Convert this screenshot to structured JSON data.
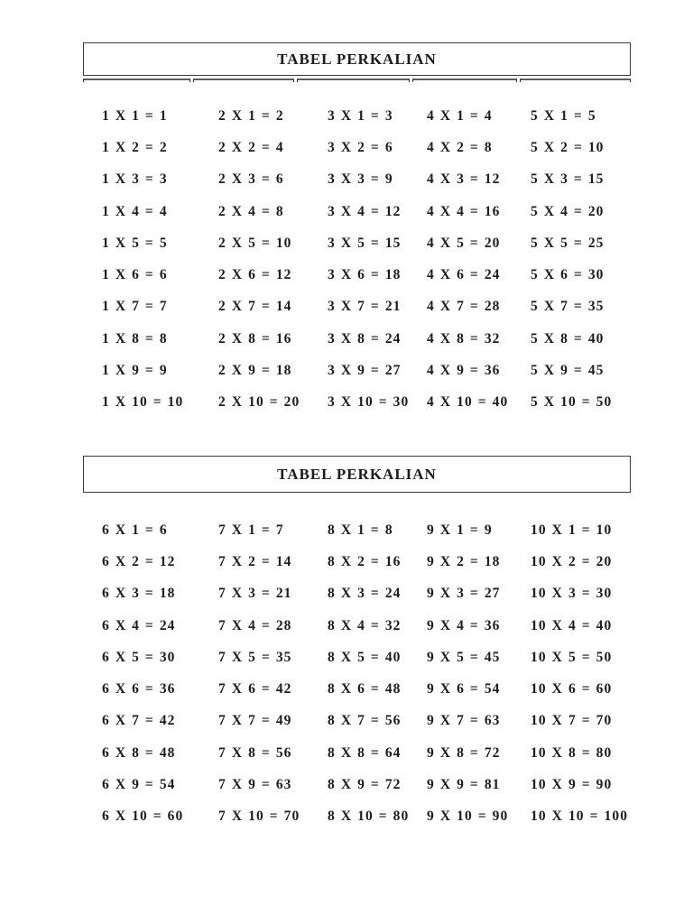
{
  "colors": {
    "page_bg": "#ffffff",
    "text": "#1c1c1c",
    "border": "#3a3a3a"
  },
  "sections": [
    {
      "title": "TABEL PERKALIAN",
      "rows": [
        [
          "1 X 1 = 1",
          "2 X 1 = 2",
          "3 X 1 = 3",
          "4 X 1 = 4",
          "5 X 1 = 5"
        ],
        [
          "1 X 2 = 2",
          "2 X 2 = 4",
          "3 X 2 = 6",
          "4 X 2 = 8",
          "5 X 2 = 10"
        ],
        [
          "1 X 3 = 3",
          "2 X 3 = 6",
          "3 X 3 = 9",
          "4 X 3 = 12",
          "5 X 3 = 15"
        ],
        [
          "1 X 4 = 4",
          "2 X 4 = 8",
          "3 X 4 = 12",
          "4 X 4 = 16",
          "5 X 4 = 20"
        ],
        [
          "1 X 5 = 5",
          "2 X 5 = 10",
          "3 X 5 = 15",
          "4 X 5 = 20",
          "5 X 5 = 25"
        ],
        [
          "1 X 6 = 6",
          "2 X 6 = 12",
          "3 X 6 = 18",
          "4 X 6 = 24",
          "5 X 6 = 30"
        ],
        [
          "1 X 7 = 7",
          "2 X 7 = 14",
          "3 X 7 = 21",
          "4 X 7 = 28",
          "5 X 7 = 35"
        ],
        [
          "1 X 8 = 8",
          "2 X 8 = 16",
          "3 X 8 = 24",
          "4 X 8 = 32",
          "5 X 8 = 40"
        ],
        [
          "1 X 9 = 9",
          "2 X 9 = 18",
          "3 X 9 = 27",
          "4 X 9 = 36",
          "5 X 9 = 45"
        ],
        [
          "1 X 10 = 10",
          "2 X 10 = 20",
          "3 X 10 = 30",
          "4 X 10 = 40",
          "5 X 10 = 50"
        ]
      ]
    },
    {
      "title": "TABEL PERKALIAN",
      "rows": [
        [
          "6 X 1 = 6",
          "7 X 1 = 7",
          "8 X 1 = 8",
          "9 X 1 = 9",
          "10 X 1 = 10"
        ],
        [
          "6 X 2 = 12",
          "7 X 2 = 14",
          "8 X 2 = 16",
          "9 X 2 = 18",
          "10 X 2 = 20"
        ],
        [
          "6 X 3 = 18",
          "7 X 3 = 21",
          "8 X 3 = 24",
          "9 X 3 = 27",
          "10 X 3 = 30"
        ],
        [
          "6 X 4 = 24",
          "7 X 4 = 28",
          "8 X 4 = 32",
          "9 X 4 = 36",
          "10 X 4 = 40"
        ],
        [
          "6 X 5 = 30",
          "7 X 5 = 35",
          "8 X 5 = 40",
          "9 X 5 = 45",
          "10 X 5 = 50"
        ],
        [
          "6 X 6 = 36",
          "7 X 6 = 42",
          "8 X 6 = 48",
          "9 X 6 = 54",
          "10 X 6 = 60"
        ],
        [
          "6 X 7 = 42",
          "7 X 7 = 49",
          "8 X 7 = 56",
          "9 X 7 = 63",
          "10 X 7 = 70"
        ],
        [
          "6 X 8 = 48",
          "7 X 8 = 56",
          "8 X 8 = 64",
          "9 X 8 = 72",
          "10 X 8 = 80"
        ],
        [
          "6 X 9 = 54",
          "7 X 9 = 63",
          "8 X 9 = 72",
          "9 X 9 = 81",
          "10 X 9 = 90"
        ],
        [
          "6 X 10 = 60",
          "7 X 10 = 70",
          "8 X 10 = 80",
          "9 X 10 = 90",
          "10 X 10 = 100"
        ]
      ]
    }
  ]
}
